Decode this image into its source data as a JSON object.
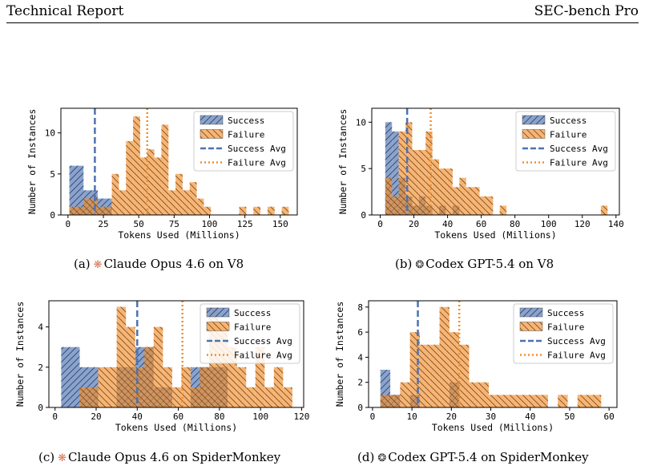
{
  "header": {
    "left": "Technical Report",
    "right": "SEC-bench Pro"
  },
  "captions": [
    {
      "label": "(a)",
      "icon": "claude-spark-icon",
      "text": "Claude Opus 4.6 on V8",
      "color": "#d97757"
    },
    {
      "label": "(b)",
      "icon": "openai-knot-icon",
      "text": "Codex GPT-5.4 on V8",
      "color": "#333333"
    },
    {
      "label": "(c)",
      "icon": "claude-spark-icon",
      "text": "Claude Opus 4.6 on SpiderMonkey",
      "color": "#d97757"
    },
    {
      "label": "(d)",
      "icon": "openai-knot-icon",
      "text": "Codex GPT-5.4 on SpiderMonkey",
      "color": "#333333"
    }
  ],
  "colors": {
    "success": "#4c72b0",
    "failure": "#f28e2b"
  },
  "chart_data": [
    {
      "type": "bar",
      "xlabel": "Tokens Used (Millions)",
      "ylabel": "Number of Instances",
      "xlim": [
        -5,
        162
      ],
      "ylim": [
        0,
        13
      ],
      "xticks": [
        0,
        25,
        50,
        75,
        100,
        125,
        150
      ],
      "yticks": [
        0,
        5,
        10
      ],
      "legend": [
        "Success",
        "Failure",
        "Success Avg",
        "Failure Avg"
      ],
      "legend_position": "top-right",
      "success_avg": 19,
      "failure_avg": 56,
      "success_bins": [
        [
          1,
          11,
          6
        ],
        [
          11,
          21,
          3
        ],
        [
          21,
          31,
          2
        ]
      ],
      "failure_bins": [
        [
          1,
          11,
          1
        ],
        [
          11,
          21,
          2
        ],
        [
          21,
          26,
          1
        ],
        [
          26,
          31,
          1
        ],
        [
          31,
          36,
          5
        ],
        [
          36,
          41,
          3
        ],
        [
          41,
          46,
          9
        ],
        [
          46,
          51,
          12
        ],
        [
          51,
          56,
          7
        ],
        [
          56,
          61,
          8
        ],
        [
          61,
          66,
          7
        ],
        [
          66,
          71,
          11
        ],
        [
          71,
          76,
          3
        ],
        [
          76,
          81,
          5
        ],
        [
          81,
          86,
          3
        ],
        [
          86,
          91,
          4
        ],
        [
          91,
          96,
          2
        ],
        [
          96,
          101,
          1
        ],
        [
          121,
          126,
          1
        ],
        [
          131,
          136,
          1
        ],
        [
          141,
          146,
          1
        ],
        [
          151,
          156,
          1
        ]
      ]
    },
    {
      "type": "bar",
      "xlabel": "Tokens Used (Millions)",
      "ylabel": "Number of Instances",
      "xlim": [
        -5,
        142
      ],
      "ylim": [
        0,
        11.5
      ],
      "xticks": [
        0,
        20,
        40,
        60,
        80,
        100,
        120,
        140
      ],
      "yticks": [
        0,
        5,
        10
      ],
      "legend": [
        "Success",
        "Failure",
        "Success Avg",
        "Failure Avg"
      ],
      "legend_position": "top-right",
      "success_avg": 16,
      "failure_avg": 30,
      "success_bins": [
        [
          3,
          7,
          10
        ],
        [
          7,
          11,
          9
        ],
        [
          11,
          15,
          4
        ],
        [
          15,
          19,
          2
        ],
        [
          19,
          23,
          1
        ],
        [
          23,
          27,
          2
        ],
        [
          27,
          31,
          1
        ],
        [
          35,
          39,
          1
        ],
        [
          43,
          47,
          1
        ]
      ],
      "failure_bins": [
        [
          3,
          7,
          4
        ],
        [
          7,
          11,
          2
        ],
        [
          11,
          15,
          9
        ],
        [
          15,
          19,
          10
        ],
        [
          19,
          23,
          7
        ],
        [
          23,
          27,
          7
        ],
        [
          27,
          31,
          9
        ],
        [
          31,
          35,
          6
        ],
        [
          35,
          39,
          5
        ],
        [
          39,
          43,
          5
        ],
        [
          43,
          47,
          3
        ],
        [
          47,
          51,
          4
        ],
        [
          51,
          55,
          3
        ],
        [
          55,
          59,
          3
        ],
        [
          59,
          63,
          2
        ],
        [
          63,
          67,
          2
        ],
        [
          71,
          75,
          1
        ],
        [
          131,
          135,
          1
        ]
      ]
    },
    {
      "type": "bar",
      "xlabel": "Tokens Used (Millions)",
      "ylabel": "Number of Instances",
      "xlim": [
        -3,
        121
      ],
      "ylim": [
        0,
        5.3
      ],
      "xticks": [
        0,
        20,
        40,
        60,
        80,
        100,
        120
      ],
      "yticks": [
        0,
        2,
        4
      ],
      "legend": [
        "Success",
        "Failure",
        "Success Avg",
        "Failure Avg"
      ],
      "legend_position": "top-right",
      "success_avg": 40,
      "failure_avg": 62,
      "success_bins": [
        [
          3,
          12,
          3
        ],
        [
          12,
          21,
          2
        ],
        [
          30,
          39,
          2
        ],
        [
          39,
          48,
          3
        ],
        [
          48,
          57,
          1
        ],
        [
          66,
          75,
          2
        ],
        [
          75,
          84,
          2
        ]
      ],
      "failure_bins": [
        [
          12,
          21,
          1
        ],
        [
          21,
          30,
          2
        ],
        [
          30,
          34.5,
          5
        ],
        [
          34.5,
          39,
          4
        ],
        [
          39,
          43.5,
          2
        ],
        [
          43.5,
          48,
          3
        ],
        [
          48,
          52.5,
          4
        ],
        [
          52.5,
          57,
          2
        ],
        [
          57,
          61.5,
          1
        ],
        [
          61.5,
          66,
          2
        ],
        [
          66,
          70.5,
          1
        ],
        [
          70.5,
          75,
          2
        ],
        [
          75,
          79.5,
          5
        ],
        [
          79.5,
          84,
          4
        ],
        [
          84,
          88.5,
          3
        ],
        [
          88.5,
          93,
          2
        ],
        [
          93,
          97.5,
          1
        ],
        [
          97.5,
          102,
          3
        ],
        [
          102,
          106.5,
          1
        ],
        [
          106.5,
          111,
          2
        ],
        [
          111,
          115.5,
          1
        ]
      ]
    },
    {
      "type": "bar",
      "xlabel": "Tokens Used (Millions)",
      "ylabel": "Number of Instances",
      "xlim": [
        -1,
        62
      ],
      "ylim": [
        0,
        8.5
      ],
      "xticks": [
        0,
        10,
        20,
        30,
        40,
        50,
        60
      ],
      "yticks": [
        0,
        2,
        4,
        6,
        8
      ],
      "legend": [
        "Success",
        "Failure",
        "Success Avg",
        "Failure Avg"
      ],
      "legend_position": "top-right",
      "success_avg": 11.5,
      "failure_avg": 22,
      "success_bins": [
        [
          2,
          4.5,
          3
        ],
        [
          4.5,
          7,
          1
        ],
        [
          9.5,
          12,
          1
        ],
        [
          19.5,
          22,
          2
        ]
      ],
      "failure_bins": [
        [
          2,
          4.5,
          1
        ],
        [
          4.5,
          7,
          1
        ],
        [
          7,
          9.5,
          2
        ],
        [
          9.5,
          12,
          6
        ],
        [
          12,
          14.5,
          5
        ],
        [
          14.5,
          17,
          5
        ],
        [
          17,
          19.5,
          8
        ],
        [
          19.5,
          22,
          6
        ],
        [
          22,
          24.5,
          5
        ],
        [
          24.5,
          27,
          2
        ],
        [
          27,
          29.5,
          2
        ],
        [
          29.5,
          32,
          1
        ],
        [
          32,
          34.5,
          1
        ],
        [
          34.5,
          39.5,
          1
        ],
        [
          39.5,
          44.5,
          1
        ],
        [
          47,
          49.5,
          1
        ],
        [
          52,
          58,
          1
        ]
      ]
    }
  ]
}
